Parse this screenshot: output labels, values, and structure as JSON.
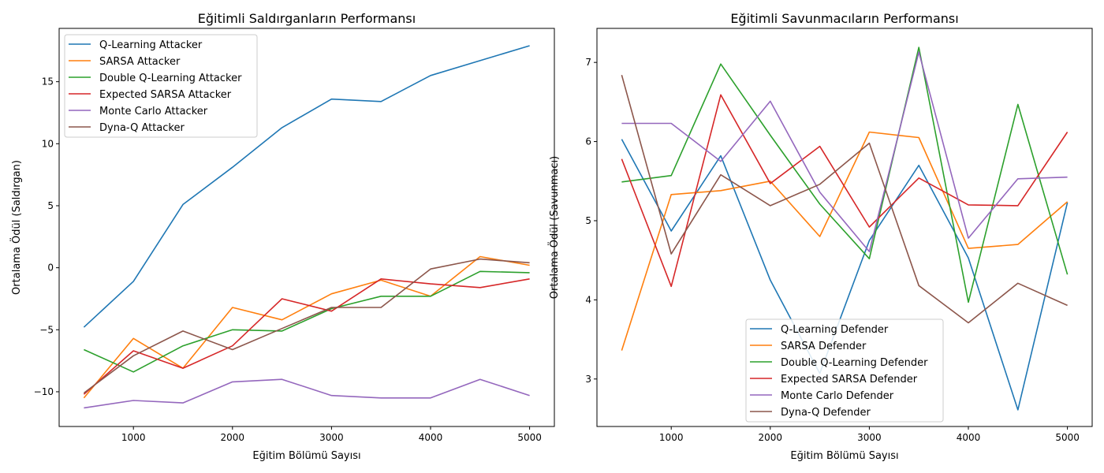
{
  "chart_data": [
    {
      "type": "line",
      "title": "Eğitimli Saldırganların Performansı",
      "xlabel": "Eğitim Bölümü Sayısı",
      "ylabel": "Ortalama Ödül (Saldırgan)",
      "x": [
        500,
        1000,
        1500,
        2000,
        2500,
        3000,
        3500,
        4000,
        4500,
        5000
      ],
      "xlim": [
        250,
        5250
      ],
      "ylim": [
        -12.8,
        19.3
      ],
      "xticks": [
        1000,
        2000,
        3000,
        4000,
        5000
      ],
      "yticks": [
        -10,
        -5,
        0,
        5,
        10,
        15
      ],
      "ytick_labels": [
        "−10",
        "−5",
        "0",
        "5",
        "10",
        "15"
      ],
      "grid": false,
      "legend_position": "top-left",
      "series": [
        {
          "name": "Q-Learning Attacker",
          "color": "#1f77b4",
          "values": [
            -4.8,
            -1.1,
            5.1,
            8.1,
            11.3,
            13.6,
            13.4,
            15.5,
            16.7,
            17.9
          ]
        },
        {
          "name": "SARSA Attacker",
          "color": "#ff7f0e",
          "values": [
            -10.5,
            -5.7,
            -8.1,
            -3.2,
            -4.2,
            -2.1,
            -1.0,
            -2.3,
            0.9,
            0.2
          ]
        },
        {
          "name": "Double Q-Learning Attacker",
          "color": "#2ca02c",
          "values": [
            -6.6,
            -8.4,
            -6.3,
            -5.0,
            -5.1,
            -3.3,
            -2.3,
            -2.3,
            -0.3,
            -0.4
          ]
        },
        {
          "name": "Expected SARSA Attacker",
          "color": "#d62728",
          "values": [
            -10.2,
            -6.7,
            -8.1,
            -6.3,
            -2.5,
            -3.5,
            -0.9,
            -1.3,
            -1.6,
            -0.9
          ]
        },
        {
          "name": "Monte Carlo Attacker",
          "color": "#9467bd",
          "values": [
            -11.3,
            -10.7,
            -10.9,
            -9.2,
            -9.0,
            -10.3,
            -10.5,
            -10.5,
            -9.0,
            -10.3
          ]
        },
        {
          "name": "Dyna-Q Attacker",
          "color": "#8c564b",
          "values": [
            -10.1,
            -7.1,
            -5.1,
            -6.6,
            -4.9,
            -3.2,
            -3.2,
            -0.1,
            0.7,
            0.4
          ]
        }
      ]
    },
    {
      "type": "line",
      "title": "Eğitimli Savunmacıların Performansı",
      "xlabel": "Eğitim Bölümü Sayısı",
      "ylabel": "Ortalama Ödül (Savunmacı)",
      "x": [
        500,
        1000,
        1500,
        2000,
        2500,
        3000,
        3500,
        4000,
        4500,
        5000
      ],
      "xlim": [
        250,
        5250
      ],
      "ylim": [
        2.4,
        7.43
      ],
      "xticks": [
        1000,
        2000,
        3000,
        4000,
        5000
      ],
      "yticks": [
        3,
        4,
        5,
        6,
        7
      ],
      "ytick_labels": [
        "3",
        "4",
        "5",
        "6",
        "7"
      ],
      "grid": false,
      "legend_position": "lower-center",
      "series": [
        {
          "name": "Q-Learning Defender",
          "color": "#1f77b4",
          "values": [
            6.03,
            4.87,
            5.82,
            4.25,
            3.07,
            4.75,
            5.7,
            4.53,
            2.61,
            5.23
          ]
        },
        {
          "name": "SARSA Defender",
          "color": "#ff7f0e",
          "values": [
            3.36,
            5.33,
            5.38,
            5.5,
            4.8,
            6.12,
            6.05,
            4.65,
            4.7,
            5.24
          ]
        },
        {
          "name": "Double Q-Learning Defender",
          "color": "#2ca02c",
          "values": [
            5.49,
            5.57,
            6.98,
            6.08,
            5.21,
            4.52,
            7.19,
            3.97,
            6.47,
            4.32
          ]
        },
        {
          "name": "Expected SARSA Defender",
          "color": "#d62728",
          "values": [
            5.78,
            4.17,
            6.59,
            5.47,
            5.94,
            4.92,
            5.54,
            5.2,
            5.19,
            6.12
          ]
        },
        {
          "name": "Monte Carlo Defender",
          "color": "#9467bd",
          "values": [
            6.23,
            6.23,
            5.75,
            6.51,
            5.36,
            4.61,
            7.13,
            4.78,
            5.53,
            5.55
          ]
        },
        {
          "name": "Dyna-Q Defender",
          "color": "#8c564b",
          "values": [
            6.84,
            4.58,
            5.58,
            5.19,
            5.46,
            5.98,
            4.18,
            3.71,
            4.21,
            3.93
          ]
        }
      ]
    }
  ]
}
